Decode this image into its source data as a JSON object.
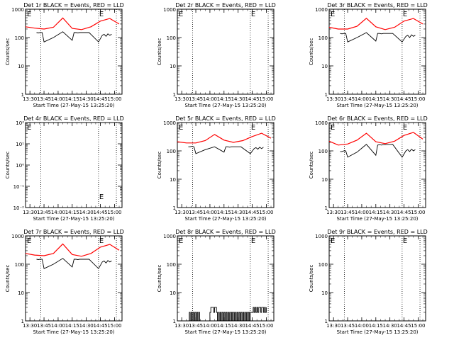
{
  "window": {
    "title": ""
  },
  "chart_data": [
    {
      "type": "line",
      "title": "Det 1r BLACK = Events, RED = LLD",
      "ylabel": "Counts/sec",
      "xlabel": "Start Time (27-May-15 13:25:20)",
      "yscale": "log",
      "ylim": [
        1,
        1000
      ],
      "yticks": [
        "1",
        "10",
        "100",
        "1000"
      ],
      "xlim": [
        "13:25:20",
        "15:08:00"
      ],
      "xticks": [
        "13:30",
        "13:45",
        "14:00",
        "14:15",
        "14:30",
        "14:45",
        "15:00"
      ],
      "markers": [
        {
          "label": "E",
          "time": "13:25:20",
          "vline": false
        },
        {
          "label": "E",
          "time": "14:43:00",
          "vline": true
        },
        {
          "label": "",
          "time": "13:41:30",
          "vline": true
        },
        {
          "label": "",
          "time": "15:02:00",
          "vline": true
        }
      ],
      "series": [
        {
          "color": "#ff0000",
          "x": [
            "13:25:20",
            "13:35",
            "13:45",
            "13:55",
            "14:05",
            "14:15",
            "14:25",
            "14:35",
            "14:45",
            "14:55",
            "15:05"
          ],
          "values": [
            240,
            215,
            200,
            230,
            490,
            210,
            190,
            240,
            380,
            470,
            300
          ]
        },
        {
          "color": "#000000",
          "x": [
            "13:37",
            "13:39",
            "13:41",
            "13:43",
            "13:45",
            "13:55",
            "14:05",
            "14:15",
            "14:17",
            "14:19",
            "14:21",
            "14:23",
            "14:33",
            "14:43",
            "14:47",
            "14:49",
            "14:51",
            "14:53",
            "14:55",
            "14:57"
          ],
          "values": [
            150,
            145,
            150,
            150,
            70,
            100,
            160,
            80,
            150,
            150,
            145,
            150,
            150,
            70,
            120,
            130,
            110,
            135,
            120,
            130
          ]
        }
      ]
    },
    {
      "type": "line",
      "title": "Det 2r BLACK = Events, RED = LLD",
      "ylabel": "Counts/sec",
      "xlabel": "Start Time (27-May-15 13:25:20)",
      "yscale": "log",
      "ylim": [
        1,
        1000
      ],
      "yticks": [
        "1",
        "10",
        "100",
        "1000"
      ],
      "xlim": [
        "13:25:20",
        "15:08:00"
      ],
      "xticks": [
        "13:30",
        "13:45",
        "14:00",
        "14:15",
        "14:30",
        "14:45",
        "15:00"
      ],
      "markers": [
        {
          "label": "E",
          "time": "13:25:20",
          "vline": false
        },
        {
          "label": "E",
          "time": "14:43:00",
          "vline": true
        },
        {
          "label": "",
          "time": "13:41:30",
          "vline": true
        },
        {
          "label": "",
          "time": "15:02:00",
          "vline": true
        }
      ],
      "series": []
    },
    {
      "type": "line",
      "title": "Det 3r BLACK = Events, RED = LLD",
      "ylabel": "Counts/sec",
      "xlabel": "Start Time (27-May-15 13:25:20)",
      "yscale": "log",
      "ylim": [
        1,
        1000
      ],
      "yticks": [
        "1",
        "10",
        "100",
        "1000"
      ],
      "xlim": [
        "13:25:20",
        "15:08:00"
      ],
      "xticks": [
        "13:30",
        "13:45",
        "14:00",
        "14:15",
        "14:30",
        "14:45",
        "15:00"
      ],
      "markers": [
        {
          "label": "E",
          "time": "13:25:20",
          "vline": false
        },
        {
          "label": "E",
          "time": "14:43:00",
          "vline": true
        },
        {
          "label": "",
          "time": "13:41:30",
          "vline": true
        },
        {
          "label": "",
          "time": "15:02:00",
          "vline": true
        }
      ],
      "series": [
        {
          "color": "#ff0000",
          "x": [
            "13:25:20",
            "13:35",
            "13:45",
            "13:55",
            "14:05",
            "14:15",
            "14:25",
            "14:35",
            "14:45",
            "14:55",
            "15:05"
          ],
          "values": [
            230,
            200,
            200,
            250,
            480,
            240,
            190,
            230,
            380,
            470,
            300
          ]
        },
        {
          "color": "#000000",
          "x": [
            "13:37",
            "13:39",
            "13:41",
            "13:43",
            "13:45",
            "13:55",
            "14:05",
            "14:15",
            "14:17",
            "14:19",
            "14:21",
            "14:23",
            "14:33",
            "14:43",
            "14:47",
            "14:49",
            "14:51",
            "14:53",
            "14:55",
            "14:57"
          ],
          "values": [
            140,
            135,
            140,
            140,
            70,
            100,
            150,
            75,
            140,
            140,
            135,
            140,
            140,
            70,
            110,
            120,
            100,
            125,
            110,
            120
          ]
        }
      ]
    },
    {
      "type": "line",
      "title": "Det 4r BLACK = Events, RED = LLD",
      "ylabel": "Counts/sec",
      "xlabel": "Start Time (27-May-15 13:25:20)",
      "yscale": "log",
      "ylim": [
        0.01,
        100
      ],
      "yticks": [
        "10⁻²",
        "10⁻¹",
        "10⁰",
        "10¹",
        "10²"
      ],
      "xlim": [
        "13:25:20",
        "15:08:00"
      ],
      "xticks": [
        "13:30",
        "13:45",
        "14:00",
        "14:15",
        "14:30",
        "14:45",
        "15:00"
      ],
      "markers": [
        {
          "label": "E",
          "time": "13:25:20",
          "vline": false
        },
        {
          "label": "E",
          "time": "14:43:00",
          "vline": true
        },
        {
          "label": "",
          "time": "13:41:30",
          "vline": true
        },
        {
          "label": "",
          "time": "15:02:00",
          "vline": true
        }
      ],
      "series": []
    },
    {
      "type": "line",
      "title": "Det 5r BLACK = Events, RED = LLD",
      "ylabel": "Counts/sec",
      "xlabel": "Start Time (27-May-15 13:25:20)",
      "yscale": "log",
      "ylim": [
        1,
        1000
      ],
      "yticks": [
        "1",
        "10",
        "100",
        "1000"
      ],
      "xlim": [
        "13:25:20",
        "15:08:00"
      ],
      "xticks": [
        "13:30",
        "13:45",
        "14:00",
        "14:15",
        "14:30",
        "14:45",
        "15:00"
      ],
      "markers": [
        {
          "label": "E",
          "time": "13:25:20",
          "vline": false
        },
        {
          "label": "E",
          "time": "14:43:00",
          "vline": true
        },
        {
          "label": "",
          "time": "13:41:30",
          "vline": true
        },
        {
          "label": "",
          "time": "15:02:00",
          "vline": true
        }
      ],
      "series": [
        {
          "color": "#ff0000",
          "x": [
            "13:25:20",
            "13:35",
            "13:45",
            "13:55",
            "14:05",
            "14:15",
            "14:25",
            "14:35",
            "14:45",
            "14:55",
            "15:05"
          ],
          "values": [
            210,
            190,
            190,
            230,
            380,
            240,
            200,
            230,
            320,
            420,
            280
          ]
        },
        {
          "color": "#000000",
          "x": [
            "13:37",
            "13:39",
            "13:41",
            "13:43",
            "13:45",
            "13:55",
            "14:05",
            "14:15",
            "14:17",
            "14:19",
            "14:21",
            "14:23",
            "14:33",
            "14:43",
            "14:47",
            "14:49",
            "14:51",
            "14:53",
            "14:55",
            "14:57"
          ],
          "values": [
            140,
            140,
            145,
            140,
            80,
            110,
            140,
            90,
            140,
            140,
            135,
            140,
            140,
            80,
            120,
            130,
            115,
            135,
            120,
            135
          ]
        }
      ]
    },
    {
      "type": "line",
      "title": "Det 6r BLACK = Events, RED = LLD",
      "ylabel": "Counts/sec",
      "xlabel": "Start Time (27-May-15 13:25:20)",
      "yscale": "log",
      "ylim": [
        1,
        1000
      ],
      "yticks": [
        "1",
        "10",
        "100",
        "1000"
      ],
      "xlim": [
        "13:25:20",
        "15:08:00"
      ],
      "xticks": [
        "13:30",
        "13:45",
        "14:00",
        "14:15",
        "14:30",
        "14:45",
        "15:00"
      ],
      "markers": [
        {
          "label": "E",
          "time": "13:25:20",
          "vline": false
        },
        {
          "label": "E",
          "time": "14:43:00",
          "vline": true
        },
        {
          "label": "",
          "time": "13:41:30",
          "vline": true
        },
        {
          "label": "",
          "time": "15:02:00",
          "vline": true
        }
      ],
      "series": [
        {
          "color": "#ff0000",
          "x": [
            "13:25:20",
            "13:35",
            "13:45",
            "13:55",
            "14:05",
            "14:15",
            "14:25",
            "14:35",
            "14:45",
            "14:55",
            "15:05"
          ],
          "values": [
            220,
            160,
            175,
            240,
            420,
            210,
            180,
            220,
            350,
            450,
            260
          ]
        },
        {
          "color": "#000000",
          "x": [
            "13:37",
            "13:39",
            "13:41",
            "13:43",
            "13:45",
            "13:55",
            "14:05",
            "14:15",
            "14:17",
            "14:19",
            "14:21",
            "14:23",
            "14:33",
            "14:43",
            "14:47",
            "14:49",
            "14:51",
            "14:53",
            "14:55",
            "14:57"
          ],
          "values": [
            95,
            95,
            100,
            100,
            60,
            90,
            170,
            70,
            160,
            165,
            160,
            165,
            170,
            60,
            100,
            110,
            95,
            115,
            100,
            110
          ]
        }
      ]
    },
    {
      "type": "line",
      "title": "Det 7r BLACK = Events, RED = LLD",
      "ylabel": "Counts/sec",
      "xlabel": "Start Time (27-May-15 13:25:20)",
      "yscale": "log",
      "ylim": [
        1,
        1000
      ],
      "yticks": [
        "1",
        "10",
        "100",
        "1000"
      ],
      "xlim": [
        "13:25:20",
        "15:08:00"
      ],
      "xticks": [
        "13:30",
        "13:45",
        "14:00",
        "14:15",
        "14:30",
        "14:45",
        "15:00"
      ],
      "markers": [
        {
          "label": "E",
          "time": "13:25:20",
          "vline": false
        },
        {
          "label": "E",
          "time": "14:43:00",
          "vline": true
        },
        {
          "label": "",
          "time": "13:41:30",
          "vline": true
        },
        {
          "label": "",
          "time": "15:02:00",
          "vline": true
        }
      ],
      "series": [
        {
          "color": "#ff0000",
          "x": [
            "13:25:20",
            "13:35",
            "13:45",
            "13:55",
            "14:05",
            "14:15",
            "14:25",
            "14:35",
            "14:45",
            "14:55",
            "15:05"
          ],
          "values": [
            240,
            210,
            200,
            240,
            520,
            220,
            190,
            240,
            400,
            500,
            310
          ]
        },
        {
          "color": "#000000",
          "x": [
            "13:37",
            "13:39",
            "13:41",
            "13:43",
            "13:45",
            "13:55",
            "14:05",
            "14:15",
            "14:17",
            "14:19",
            "14:21",
            "14:23",
            "14:33",
            "14:43",
            "14:47",
            "14:49",
            "14:51",
            "14:53",
            "14:55",
            "14:57"
          ],
          "values": [
            150,
            145,
            150,
            150,
            70,
            100,
            160,
            80,
            150,
            150,
            145,
            150,
            150,
            70,
            120,
            130,
            110,
            135,
            120,
            130
          ]
        }
      ]
    },
    {
      "type": "line",
      "title": "Det 8r BLACK = Events, RED = LLD",
      "ylabel": "Counts/sec",
      "xlabel": "Start Time (27-May-15 13:25:20)",
      "yscale": "log",
      "ylim": [
        1,
        1000
      ],
      "yticks": [
        "1",
        "10",
        "100",
        "1000"
      ],
      "xlim": [
        "13:25:20",
        "15:08:00"
      ],
      "xticks": [
        "13:30",
        "13:45",
        "14:00",
        "14:15",
        "14:30",
        "14:45",
        "15:00"
      ],
      "markers": [
        {
          "label": "E",
          "time": "13:25:20",
          "vline": false
        },
        {
          "label": "E",
          "time": "14:43:00",
          "vline": true
        },
        {
          "label": "",
          "time": "13:41:30",
          "vline": true
        },
        {
          "label": "",
          "time": "15:02:00",
          "vline": true
        }
      ],
      "series": [
        {
          "color": "#000000",
          "step": true,
          "x": [
            "13:37",
            "13:38",
            "13:39",
            "13:40",
            "13:41",
            "13:42",
            "13:43",
            "13:44",
            "13:45",
            "13:46",
            "13:47",
            "13:48",
            "13:49",
            "14:00",
            "14:01",
            "14:02",
            "14:03",
            "14:04",
            "14:05",
            "14:06",
            "14:07",
            "14:08",
            "14:09",
            "14:10",
            "14:11",
            "14:12",
            "14:13",
            "14:14",
            "14:15",
            "14:16",
            "14:17",
            "14:18",
            "14:19",
            "14:20",
            "14:21",
            "14:22",
            "14:23",
            "14:24",
            "14:25",
            "14:26",
            "14:27",
            "14:28",
            "14:29",
            "14:30",
            "14:31",
            "14:32",
            "14:33",
            "14:34",
            "14:35",
            "14:36",
            "14:37",
            "14:38",
            "14:39",
            "14:40",
            "14:41",
            "14:42",
            "14:43",
            "14:44",
            "14:45",
            "14:46",
            "14:47",
            "14:48",
            "14:49",
            "14:50",
            "14:51",
            "14:52",
            "14:53",
            "14:54",
            "14:55",
            "14:56",
            "14:57",
            "14:58",
            "14:59",
            "15:00"
          ],
          "values": [
            1,
            2,
            1,
            2,
            1,
            2,
            1,
            2,
            1,
            2,
            1,
            2,
            1,
            2,
            3,
            3,
            3,
            2,
            3,
            3,
            2,
            1,
            2,
            1,
            2,
            1,
            2,
            1,
            2,
            1,
            2,
            1,
            2,
            1,
            2,
            1,
            2,
            1,
            2,
            1,
            2,
            1,
            2,
            1,
            2,
            1,
            2,
            1,
            2,
            1,
            2,
            1,
            2,
            1,
            2,
            1,
            2,
            2,
            2,
            3,
            2,
            3,
            2,
            3,
            2,
            3,
            3,
            2,
            3,
            3,
            2,
            3,
            2,
            3
          ]
        }
      ]
    },
    {
      "type": "line",
      "title": "Det 9r BLACK = Events, RED = LLD",
      "ylabel": "Counts/sec",
      "xlabel": "Start Time (27-May-15 13:25:20)",
      "yscale": "log",
      "ylim": [
        1,
        1000
      ],
      "yticks": [
        "1",
        "10",
        "100",
        "1000"
      ],
      "xlim": [
        "13:25:20",
        "15:08:00"
      ],
      "xticks": [
        "13:30",
        "13:45",
        "14:00",
        "14:15",
        "14:30",
        "14:45",
        "15:00"
      ],
      "markers": [
        {
          "label": "E",
          "time": "13:25:20",
          "vline": false
        },
        {
          "label": "E",
          "time": "14:43:00",
          "vline": true
        },
        {
          "label": "",
          "time": "13:41:30",
          "vline": true
        },
        {
          "label": "",
          "time": "15:02:00",
          "vline": true
        }
      ],
      "series": []
    }
  ]
}
